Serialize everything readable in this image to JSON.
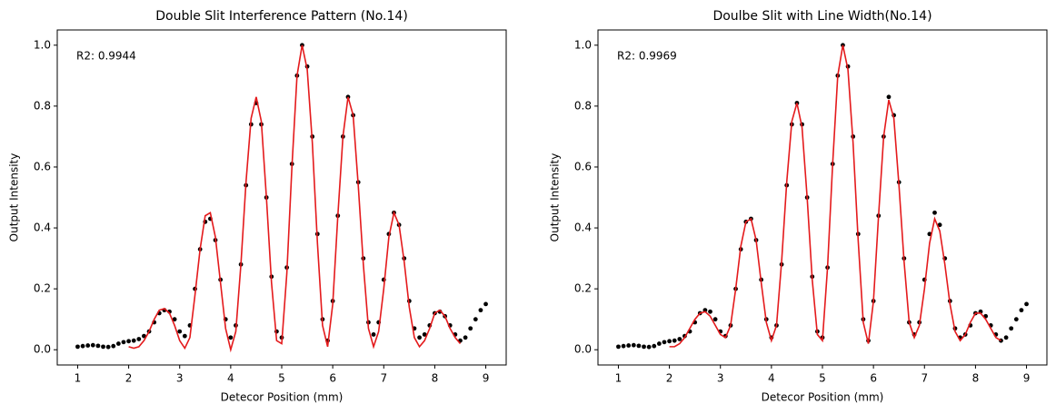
{
  "chart_data": [
    {
      "type": "scatter",
      "title": "Double Slit Interference Pattern (No.14)",
      "x_label": "Detecor Position (mm)",
      "y_label": "Output Intensity",
      "annotation": "R2: 0.9944",
      "xlim": [
        0.6,
        9.4
      ],
      "ylim": [
        -0.05,
        1.05
      ],
      "xticks": [
        1,
        2,
        3,
        4,
        5,
        6,
        7,
        8,
        9
      ],
      "yticks": [
        {
          "value": 0,
          "label": "0.0"
        },
        0.2,
        0.4,
        0.6,
        0.8,
        {
          "value": 1,
          "label": "1.0"
        }
      ],
      "points": {
        "color": "#000000",
        "x": [
          1.0,
          1.1,
          1.2,
          1.3,
          1.4,
          1.5,
          1.6,
          1.7,
          1.8,
          1.9,
          2.0,
          2.1,
          2.2,
          2.3,
          2.4,
          2.5,
          2.6,
          2.7,
          2.8,
          2.9,
          3.0,
          3.1,
          3.2,
          3.3,
          3.4,
          3.5,
          3.6,
          3.7,
          3.8,
          3.9,
          4.0,
          4.1,
          4.2,
          4.3,
          4.4,
          4.5,
          4.6,
          4.7,
          4.8,
          4.9,
          5.0,
          5.1,
          5.2,
          5.3,
          5.4,
          5.5,
          5.6,
          5.7,
          5.8,
          5.9,
          6.0,
          6.1,
          6.2,
          6.3,
          6.4,
          6.5,
          6.6,
          6.7,
          6.8,
          6.9,
          7.0,
          7.1,
          7.2,
          7.3,
          7.4,
          7.5,
          7.6,
          7.7,
          7.8,
          7.9,
          8.0,
          8.1,
          8.2,
          8.3,
          8.4,
          8.5,
          8.6,
          8.7,
          8.8,
          8.9,
          9.0
        ],
        "values": [
          0.01,
          0.012,
          0.014,
          0.015,
          0.013,
          0.01,
          0.009,
          0.012,
          0.02,
          0.025,
          0.028,
          0.03,
          0.035,
          0.045,
          0.06,
          0.09,
          0.12,
          0.13,
          0.125,
          0.1,
          0.06,
          0.045,
          0.08,
          0.2,
          0.33,
          0.42,
          0.43,
          0.36,
          0.23,
          0.1,
          0.04,
          0.08,
          0.28,
          0.54,
          0.74,
          0.81,
          0.74,
          0.5,
          0.24,
          0.06,
          0.04,
          0.27,
          0.61,
          0.9,
          1.0,
          0.93,
          0.7,
          0.38,
          0.1,
          0.03,
          0.16,
          0.44,
          0.7,
          0.83,
          0.77,
          0.55,
          0.3,
          0.09,
          0.05,
          0.09,
          0.23,
          0.38,
          0.45,
          0.41,
          0.3,
          0.16,
          0.07,
          0.04,
          0.05,
          0.08,
          0.12,
          0.125,
          0.11,
          0.08,
          0.05,
          0.03,
          0.04,
          0.07,
          0.1,
          0.13,
          0.15
        ]
      },
      "fit": {
        "color": "#e41a1c",
        "x": [
          2.0,
          2.1,
          2.2,
          2.3,
          2.4,
          2.5,
          2.6,
          2.7,
          2.8,
          2.9,
          3.0,
          3.1,
          3.2,
          3.3,
          3.4,
          3.5,
          3.6,
          3.7,
          3.8,
          3.9,
          4.0,
          4.1,
          4.2,
          4.3,
          4.4,
          4.5,
          4.6,
          4.7,
          4.8,
          4.9,
          5.0,
          5.1,
          5.2,
          5.3,
          5.4,
          5.5,
          5.6,
          5.7,
          5.8,
          5.9,
          6.0,
          6.1,
          6.2,
          6.3,
          6.4,
          6.5,
          6.6,
          6.7,
          6.8,
          6.9,
          7.0,
          7.1,
          7.2,
          7.3,
          7.4,
          7.5,
          7.6,
          7.7,
          7.8,
          7.9,
          8.0,
          8.1,
          8.2,
          8.3,
          8.4,
          8.5
        ],
        "values": [
          0.01,
          0.005,
          0.01,
          0.03,
          0.06,
          0.1,
          0.13,
          0.135,
          0.12,
          0.08,
          0.03,
          0.005,
          0.04,
          0.18,
          0.33,
          0.44,
          0.45,
          0.37,
          0.22,
          0.07,
          0.0,
          0.06,
          0.28,
          0.55,
          0.76,
          0.83,
          0.75,
          0.5,
          0.22,
          0.03,
          0.02,
          0.25,
          0.6,
          0.9,
          1.0,
          0.92,
          0.68,
          0.35,
          0.08,
          0.01,
          0.15,
          0.44,
          0.7,
          0.83,
          0.77,
          0.54,
          0.28,
          0.07,
          0.01,
          0.06,
          0.2,
          0.37,
          0.45,
          0.41,
          0.29,
          0.14,
          0.04,
          0.01,
          0.03,
          0.07,
          0.12,
          0.13,
          0.11,
          0.07,
          0.04,
          0.02
        ]
      }
    },
    {
      "type": "scatter",
      "title": "Doulbe Slit with Line Width(No.14)",
      "x_label": "Detecor Position (mm)",
      "y_label": "Output Intensity",
      "annotation": "R2: 0.9969",
      "xlim": [
        0.6,
        9.4
      ],
      "ylim": [
        -0.05,
        1.05
      ],
      "xticks": [
        1,
        2,
        3,
        4,
        5,
        6,
        7,
        8,
        9
      ],
      "yticks": [
        {
          "value": 0,
          "label": "0.0"
        },
        0.2,
        0.4,
        0.6,
        0.8,
        {
          "value": 1,
          "label": "1.0"
        }
      ],
      "points": {
        "color": "#000000",
        "x": [
          1.0,
          1.1,
          1.2,
          1.3,
          1.4,
          1.5,
          1.6,
          1.7,
          1.8,
          1.9,
          2.0,
          2.1,
          2.2,
          2.3,
          2.4,
          2.5,
          2.6,
          2.7,
          2.8,
          2.9,
          3.0,
          3.1,
          3.2,
          3.3,
          3.4,
          3.5,
          3.6,
          3.7,
          3.8,
          3.9,
          4.0,
          4.1,
          4.2,
          4.3,
          4.4,
          4.5,
          4.6,
          4.7,
          4.8,
          4.9,
          5.0,
          5.1,
          5.2,
          5.3,
          5.4,
          5.5,
          5.6,
          5.7,
          5.8,
          5.9,
          6.0,
          6.1,
          6.2,
          6.3,
          6.4,
          6.5,
          6.6,
          6.7,
          6.8,
          6.9,
          7.0,
          7.1,
          7.2,
          7.3,
          7.4,
          7.5,
          7.6,
          7.7,
          7.8,
          7.9,
          8.0,
          8.1,
          8.2,
          8.3,
          8.4,
          8.5,
          8.6,
          8.7,
          8.8,
          8.9,
          9.0
        ],
        "values": [
          0.01,
          0.012,
          0.014,
          0.015,
          0.013,
          0.01,
          0.009,
          0.012,
          0.02,
          0.025,
          0.028,
          0.03,
          0.035,
          0.045,
          0.06,
          0.09,
          0.12,
          0.13,
          0.125,
          0.1,
          0.06,
          0.045,
          0.08,
          0.2,
          0.33,
          0.42,
          0.43,
          0.36,
          0.23,
          0.1,
          0.04,
          0.08,
          0.28,
          0.54,
          0.74,
          0.81,
          0.74,
          0.5,
          0.24,
          0.06,
          0.04,
          0.27,
          0.61,
          0.9,
          1.0,
          0.93,
          0.7,
          0.38,
          0.1,
          0.03,
          0.16,
          0.44,
          0.7,
          0.83,
          0.77,
          0.55,
          0.3,
          0.09,
          0.05,
          0.09,
          0.23,
          0.38,
          0.45,
          0.41,
          0.3,
          0.16,
          0.07,
          0.04,
          0.05,
          0.08,
          0.12,
          0.125,
          0.11,
          0.08,
          0.05,
          0.03,
          0.04,
          0.07,
          0.1,
          0.13,
          0.15
        ]
      },
      "fit": {
        "color": "#e41a1c",
        "x": [
          2.0,
          2.1,
          2.2,
          2.3,
          2.4,
          2.5,
          2.6,
          2.7,
          2.8,
          2.9,
          3.0,
          3.1,
          3.2,
          3.3,
          3.4,
          3.5,
          3.6,
          3.7,
          3.8,
          3.9,
          4.0,
          4.1,
          4.2,
          4.3,
          4.4,
          4.5,
          4.6,
          4.7,
          4.8,
          4.9,
          5.0,
          5.1,
          5.2,
          5.3,
          5.4,
          5.5,
          5.6,
          5.7,
          5.8,
          5.9,
          6.0,
          6.1,
          6.2,
          6.3,
          6.4,
          6.5,
          6.6,
          6.7,
          6.8,
          6.9,
          7.0,
          7.1,
          7.2,
          7.3,
          7.4,
          7.5,
          7.6,
          7.7,
          7.8,
          7.9,
          8.0,
          8.1,
          8.2,
          8.3,
          8.4,
          8.5
        ],
        "values": [
          0.01,
          0.01,
          0.02,
          0.04,
          0.07,
          0.1,
          0.12,
          0.125,
          0.11,
          0.08,
          0.05,
          0.04,
          0.08,
          0.2,
          0.34,
          0.42,
          0.43,
          0.36,
          0.22,
          0.09,
          0.03,
          0.08,
          0.29,
          0.55,
          0.75,
          0.81,
          0.73,
          0.5,
          0.23,
          0.05,
          0.03,
          0.27,
          0.61,
          0.9,
          1.0,
          0.92,
          0.68,
          0.36,
          0.09,
          0.02,
          0.16,
          0.44,
          0.7,
          0.82,
          0.76,
          0.54,
          0.29,
          0.09,
          0.04,
          0.08,
          0.2,
          0.35,
          0.43,
          0.39,
          0.28,
          0.15,
          0.06,
          0.03,
          0.05,
          0.09,
          0.12,
          0.12,
          0.1,
          0.07,
          0.04,
          0.03
        ]
      }
    }
  ]
}
